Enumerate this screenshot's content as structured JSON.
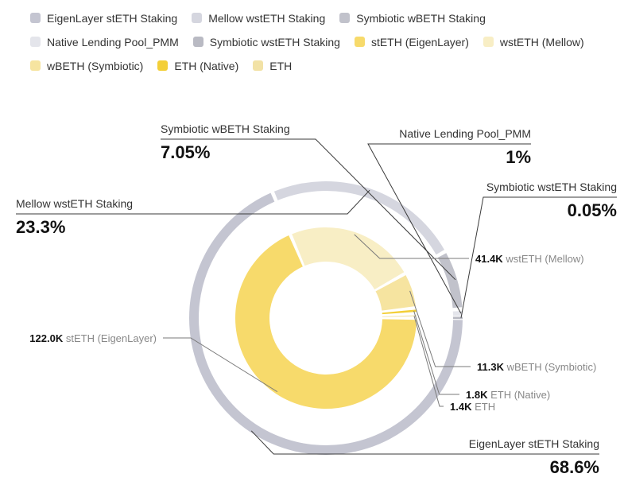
{
  "legend": [
    {
      "label": "EigenLayer stETH Staking",
      "color": "#c4c5d1"
    },
    {
      "label": "Mellow wstETH Staking",
      "color": "#d5d6df"
    },
    {
      "label": "Symbiotic wBETH Staking",
      "color": "#c1c2cb"
    },
    {
      "label": "Native Lending Pool_PMM",
      "color": "#e4e5eb"
    },
    {
      "label": "Symbiotic wstETH Staking",
      "color": "#b9bac3"
    },
    {
      "label": "stETH (EigenLayer)",
      "color": "#f7da6b"
    },
    {
      "label": "wstETH (Mellow)",
      "color": "#f8eec5"
    },
    {
      "label": "wBETH (Symbiotic)",
      "color": "#f6e4a0"
    },
    {
      "label": "ETH (Native)",
      "color": "#f3cf38"
    },
    {
      "label": "ETH",
      "color": "#f2e2a6"
    }
  ],
  "chart_data": {
    "type": "pie",
    "subtype": "nested-donut",
    "outer_ring": {
      "slices": [
        {
          "name": "EigenLayer stETH Staking",
          "value": 68.6,
          "display": "68.6%",
          "color": "#c4c5d1"
        },
        {
          "name": "Mellow wstETH Staking",
          "value": 23.3,
          "display": "23.3%",
          "color": "#d5d6df"
        },
        {
          "name": "Symbiotic wBETH Staking",
          "value": 7.05,
          "display": "7.05%",
          "color": "#c1c2cb"
        },
        {
          "name": "Native Lending Pool_PMM",
          "value": 1,
          "display": "1%",
          "color": "#e4e5eb"
        },
        {
          "name": "Symbiotic wstETH Staking",
          "value": 0.05,
          "display": "0.05%",
          "color": "#b9bac3"
        }
      ]
    },
    "inner_ring": {
      "slices": [
        {
          "name": "stETH (EigenLayer)",
          "amount": "122.0K",
          "label": "stETH (EigenLayer)",
          "value": 122.0,
          "color": "#f7da6b"
        },
        {
          "name": "wstETH (Mellow)",
          "amount": "41.4K",
          "label": "wstETH (Mellow)",
          "value": 41.4,
          "color": "#f8eec5"
        },
        {
          "name": "wBETH (Symbiotic)",
          "amount": "11.3K",
          "label": "wBETH (Symbiotic)",
          "value": 11.3,
          "color": "#f6e4a0"
        },
        {
          "name": "ETH (Native)",
          "amount": "1.8K",
          "label": "ETH (Native)",
          "value": 1.8,
          "color": "#f3cf38"
        },
        {
          "name": "ETH",
          "amount": "1.4K",
          "label": "ETH",
          "value": 1.4,
          "color": "#f2e2a6"
        }
      ]
    },
    "legend_position": "top-left",
    "line_color": "#3a3a3a",
    "value_color": "#111111",
    "name_color": "#333333",
    "inner_label_color": "#888888"
  }
}
